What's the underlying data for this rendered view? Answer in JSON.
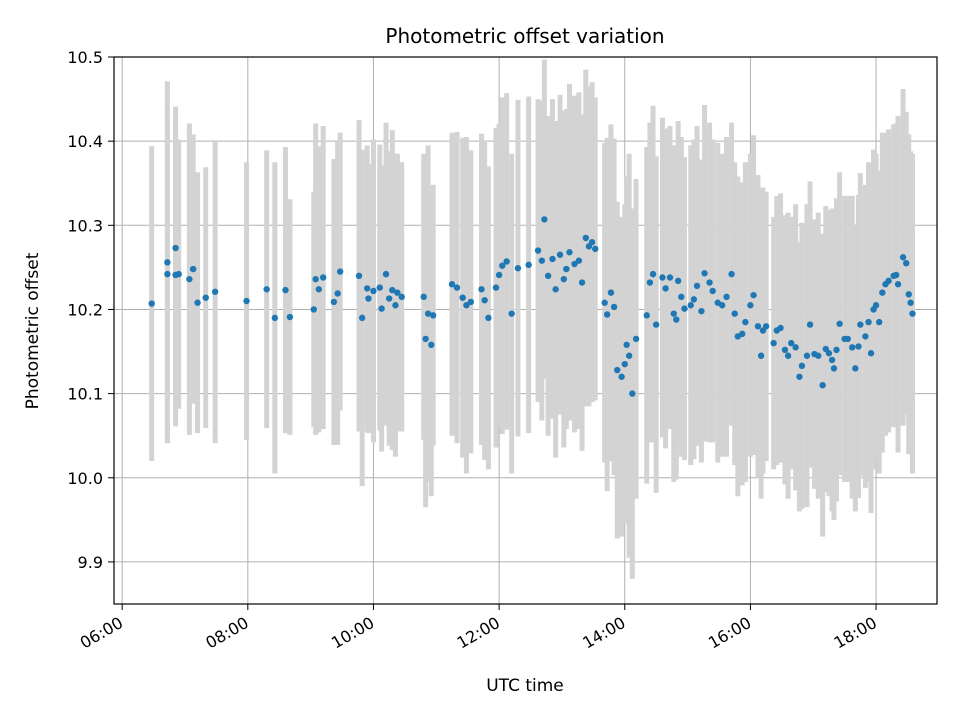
{
  "chart_data": {
    "type": "scatter",
    "title": "Photometric offset variation",
    "xlabel": "UTC time",
    "ylabel": "Photometric offset",
    "x_unit": "hours (UTC)",
    "xlim": [
      5.87,
      18.97
    ],
    "ylim": [
      9.85,
      10.5
    ],
    "x_ticks": [
      {
        "value": 6,
        "label": "06:00"
      },
      {
        "value": 8,
        "label": "08:00"
      },
      {
        "value": 10,
        "label": "10:00"
      },
      {
        "value": 12,
        "label": "12:00"
      },
      {
        "value": 14,
        "label": "14:00"
      },
      {
        "value": 16,
        "label": "16:00"
      },
      {
        "value": 18,
        "label": "18:00"
      }
    ],
    "y_ticks": [
      {
        "value": 9.9,
        "label": "9.9"
      },
      {
        "value": 10.0,
        "label": "10.0"
      },
      {
        "value": 10.1,
        "label": "10.1"
      },
      {
        "value": 10.2,
        "label": "10.2"
      },
      {
        "value": 10.3,
        "label": "10.3"
      },
      {
        "value": 10.4,
        "label": "10.4"
      },
      {
        "value": 10.5,
        "label": "10.5"
      }
    ],
    "grid": true,
    "point_color": "#1f77b4",
    "errorbar_color": "#d3d3d3",
    "points": [
      [
        6.47,
        10.207,
        0.187
      ],
      [
        6.72,
        10.256,
        0.215
      ],
      [
        6.72,
        10.242,
        0.2
      ],
      [
        6.85,
        10.273,
        0.168
      ],
      [
        6.85,
        10.241,
        0.18
      ],
      [
        6.9,
        10.242,
        0.16
      ],
      [
        7.07,
        10.236,
        0.185
      ],
      [
        7.13,
        10.248,
        0.16
      ],
      [
        7.2,
        10.208,
        0.155
      ],
      [
        7.33,
        10.214,
        0.155
      ],
      [
        7.48,
        10.221,
        0.18
      ],
      [
        7.98,
        10.21,
        0.165
      ],
      [
        8.3,
        10.224,
        0.165
      ],
      [
        8.43,
        10.19,
        0.185
      ],
      [
        8.6,
        10.223,
        0.17
      ],
      [
        8.67,
        10.191,
        0.14
      ],
      [
        9.05,
        10.2,
        0.14
      ],
      [
        9.08,
        10.236,
        0.185
      ],
      [
        9.13,
        10.224,
        0.17
      ],
      [
        9.2,
        10.238,
        0.18
      ],
      [
        9.37,
        10.209,
        0.17
      ],
      [
        9.43,
        10.219,
        0.18
      ],
      [
        9.47,
        10.245,
        0.165
      ],
      [
        9.77,
        10.24,
        0.185
      ],
      [
        9.82,
        10.19,
        0.2
      ],
      [
        9.9,
        10.225,
        0.17
      ],
      [
        9.92,
        10.213,
        0.16
      ],
      [
        10.0,
        10.222,
        0.18
      ],
      [
        10.1,
        10.226,
        0.17
      ],
      [
        10.13,
        10.201,
        0.17
      ],
      [
        10.2,
        10.242,
        0.18
      ],
      [
        10.25,
        10.213,
        0.175
      ],
      [
        10.3,
        10.223,
        0.19
      ],
      [
        10.35,
        10.205,
        0.18
      ],
      [
        10.38,
        10.22,
        0.165
      ],
      [
        10.45,
        10.215,
        0.16
      ],
      [
        10.8,
        10.215,
        0.17
      ],
      [
        10.83,
        10.165,
        0.2
      ],
      [
        10.87,
        10.195,
        0.2
      ],
      [
        10.92,
        10.158,
        0.18
      ],
      [
        10.95,
        10.193,
        0.155
      ],
      [
        11.25,
        10.23,
        0.18
      ],
      [
        11.33,
        10.226,
        0.185
      ],
      [
        11.42,
        10.214,
        0.19
      ],
      [
        11.48,
        10.205,
        0.2
      ],
      [
        11.55,
        10.209,
        0.18
      ],
      [
        11.72,
        10.224,
        0.185
      ],
      [
        11.77,
        10.211,
        0.19
      ],
      [
        11.83,
        10.19,
        0.18
      ],
      [
        11.95,
        10.226,
        0.19
      ],
      [
        12.0,
        10.241,
        0.18
      ],
      [
        12.05,
        10.252,
        0.2
      ],
      [
        12.12,
        10.257,
        0.2
      ],
      [
        12.2,
        10.195,
        0.19
      ],
      [
        12.3,
        10.249,
        0.2
      ],
      [
        12.47,
        10.253,
        0.2
      ],
      [
        12.62,
        10.27,
        0.18
      ],
      [
        12.68,
        10.258,
        0.19
      ],
      [
        12.72,
        10.307,
        0.19
      ],
      [
        12.78,
        10.24,
        0.19
      ],
      [
        12.85,
        10.26,
        0.19
      ],
      [
        12.9,
        10.224,
        0.2
      ],
      [
        12.97,
        10.265,
        0.19
      ],
      [
        13.03,
        10.236,
        0.2
      ],
      [
        13.07,
        10.248,
        0.19
      ],
      [
        13.12,
        10.268,
        0.2
      ],
      [
        13.2,
        10.254,
        0.2
      ],
      [
        13.27,
        10.258,
        0.2
      ],
      [
        13.32,
        10.232,
        0.2
      ],
      [
        13.38,
        10.285,
        0.2
      ],
      [
        13.43,
        10.275,
        0.19
      ],
      [
        13.48,
        10.28,
        0.19
      ],
      [
        13.53,
        10.272,
        0.18
      ],
      [
        13.68,
        10.208,
        0.19
      ],
      [
        13.72,
        10.194,
        0.21
      ],
      [
        13.78,
        10.22,
        0.2
      ],
      [
        13.83,
        10.203,
        0.2
      ],
      [
        13.88,
        10.128,
        0.2
      ],
      [
        13.95,
        10.12,
        0.19
      ],
      [
        14.0,
        10.135,
        0.19
      ],
      [
        14.03,
        10.158,
        0.2
      ],
      [
        14.07,
        10.145,
        0.24
      ],
      [
        14.12,
        10.1,
        0.22
      ],
      [
        14.18,
        10.165,
        0.19
      ],
      [
        14.35,
        10.193,
        0.2
      ],
      [
        14.4,
        10.232,
        0.19
      ],
      [
        14.45,
        10.242,
        0.2
      ],
      [
        14.5,
        10.182,
        0.2
      ],
      [
        14.6,
        10.238,
        0.19
      ],
      [
        14.65,
        10.225,
        0.19
      ],
      [
        14.72,
        10.238,
        0.18
      ],
      [
        14.78,
        10.195,
        0.2
      ],
      [
        14.82,
        10.188,
        0.19
      ],
      [
        14.85,
        10.234,
        0.19
      ],
      [
        14.9,
        10.215,
        0.19
      ],
      [
        14.95,
        10.201,
        0.18
      ],
      [
        15.05,
        10.205,
        0.19
      ],
      [
        15.1,
        10.212,
        0.19
      ],
      [
        15.15,
        10.228,
        0.19
      ],
      [
        15.22,
        10.198,
        0.18
      ],
      [
        15.27,
        10.243,
        0.2
      ],
      [
        15.35,
        10.232,
        0.19
      ],
      [
        15.4,
        10.222,
        0.18
      ],
      [
        15.48,
        10.208,
        0.19
      ],
      [
        15.55,
        10.205,
        0.18
      ],
      [
        15.62,
        10.215,
        0.19
      ],
      [
        15.7,
        10.242,
        0.18
      ],
      [
        15.75,
        10.195,
        0.18
      ],
      [
        15.8,
        10.168,
        0.19
      ],
      [
        15.87,
        10.171,
        0.18
      ],
      [
        15.92,
        10.185,
        0.19
      ],
      [
        16.0,
        10.205,
        0.18
      ],
      [
        16.05,
        10.217,
        0.19
      ],
      [
        16.12,
        10.18,
        0.18
      ],
      [
        16.17,
        10.145,
        0.17
      ],
      [
        16.2,
        10.175,
        0.17
      ],
      [
        16.25,
        10.18,
        0.16
      ],
      [
        16.37,
        10.16,
        0.15
      ],
      [
        16.42,
        10.175,
        0.16
      ],
      [
        16.48,
        10.178,
        0.16
      ],
      [
        16.55,
        10.152,
        0.16
      ],
      [
        16.6,
        10.145,
        0.17
      ],
      [
        16.65,
        10.16,
        0.15
      ],
      [
        16.72,
        10.155,
        0.17
      ],
      [
        16.78,
        10.12,
        0.16
      ],
      [
        16.82,
        10.133,
        0.17
      ],
      [
        16.9,
        10.145,
        0.18
      ],
      [
        16.95,
        10.182,
        0.17
      ],
      [
        17.02,
        10.147,
        0.16
      ],
      [
        17.08,
        10.145,
        0.17
      ],
      [
        17.15,
        10.11,
        0.18
      ],
      [
        17.2,
        10.153,
        0.17
      ],
      [
        17.25,
        10.148,
        0.17
      ],
      [
        17.3,
        10.14,
        0.18
      ],
      [
        17.33,
        10.13,
        0.18
      ],
      [
        17.37,
        10.152,
        0.18
      ],
      [
        17.42,
        10.183,
        0.18
      ],
      [
        17.5,
        10.165,
        0.17
      ],
      [
        17.55,
        10.165,
        0.17
      ],
      [
        17.62,
        10.155,
        0.18
      ],
      [
        17.67,
        10.13,
        0.17
      ],
      [
        17.72,
        10.156,
        0.18
      ],
      [
        17.75,
        10.182,
        0.18
      ],
      [
        17.83,
        10.168,
        0.18
      ],
      [
        17.88,
        10.185,
        0.19
      ],
      [
        17.92,
        10.148,
        0.19
      ],
      [
        17.96,
        10.2,
        0.19
      ],
      [
        18.0,
        10.205,
        0.18
      ],
      [
        18.05,
        10.185,
        0.18
      ],
      [
        18.1,
        10.22,
        0.19
      ],
      [
        18.15,
        10.23,
        0.18
      ],
      [
        18.2,
        10.234,
        0.18
      ],
      [
        18.28,
        10.24,
        0.18
      ],
      [
        18.32,
        10.241,
        0.18
      ],
      [
        18.35,
        10.23,
        0.2
      ],
      [
        18.43,
        10.262,
        0.2
      ],
      [
        18.48,
        10.255,
        0.18
      ],
      [
        18.52,
        10.218,
        0.19
      ],
      [
        18.55,
        10.208,
        0.18
      ],
      [
        18.58,
        10.195,
        0.19
      ]
    ]
  }
}
